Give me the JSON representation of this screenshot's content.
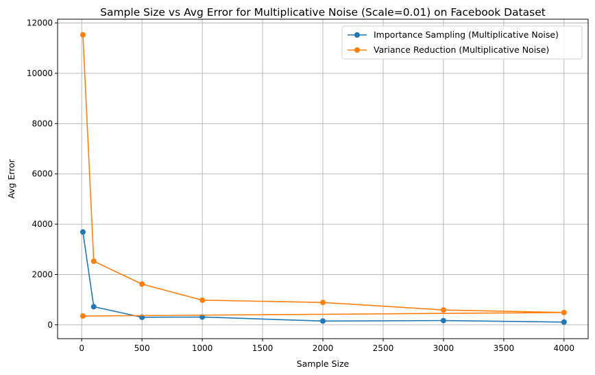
{
  "chart_data": {
    "type": "line",
    "title": "Sample Size vs Avg Error for Multiplicative Noise (Scale=0.01) on Facebook Dataset",
    "xlabel": "Sample Size",
    "ylabel": "Avg Error",
    "xlim": [
      -200,
      4200
    ],
    "ylim": [
      -550,
      12150
    ],
    "xticks": [
      0,
      500,
      1000,
      1500,
      2000,
      2500,
      3000,
      3500,
      4000
    ],
    "yticks": [
      0,
      2000,
      4000,
      6000,
      8000,
      10000,
      12000
    ],
    "grid": true,
    "legend_position": "top-right",
    "series": [
      {
        "name": "Importance Sampling (Multiplicative Noise)",
        "color": "#1f77b4",
        "marker": "circle",
        "x": [
          10,
          100,
          500,
          1000,
          2000,
          3000,
          4000
        ],
        "y": [
          3690,
          720,
          300,
          310,
          150,
          170,
          110
        ]
      },
      {
        "name": "Variance Reduction (Multiplicative Noise)",
        "color": "#ff7f0e",
        "marker": "circle",
        "x": [
          10,
          100,
          500,
          1000,
          2000,
          3000,
          4000,
          10
        ],
        "y": [
          11530,
          2530,
          1620,
          980,
          890,
          590,
          490,
          350
        ]
      }
    ]
  }
}
